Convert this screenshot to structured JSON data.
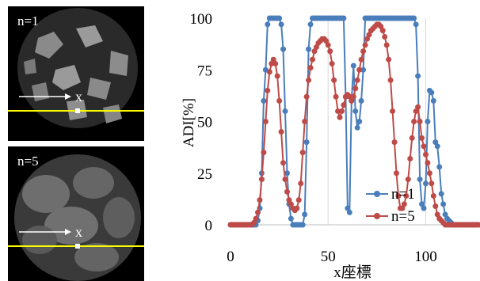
{
  "panels": {
    "top": {
      "label": "n=1",
      "x_marker": "x"
    },
    "bottom": {
      "label": "n=5",
      "x_marker": "x"
    }
  },
  "colors": {
    "n1": "#4a7ebb",
    "n5": "#be4b48",
    "line_yellow": "#ffff00",
    "grid": "#d9d9d9"
  },
  "chart_data": {
    "type": "line",
    "title": "",
    "xlabel": "x座標",
    "ylabel": "ADI[%]",
    "xlim": [
      0,
      127
    ],
    "ylim": [
      0,
      100
    ],
    "x_ticks": [
      0,
      50,
      100
    ],
    "y_ticks": [
      0,
      25,
      50,
      75,
      100
    ],
    "grid": "vertical",
    "legend": "bottom-right",
    "series": [
      {
        "name": "n=1",
        "x": [
          0,
          1,
          2,
          3,
          4,
          5,
          6,
          7,
          8,
          9,
          10,
          11,
          12,
          13,
          14,
          15,
          16,
          17,
          18,
          19,
          20,
          21,
          22,
          23,
          24,
          25,
          26,
          27,
          28,
          29,
          30,
          31,
          32,
          33,
          34,
          35,
          36,
          37,
          38,
          39,
          40,
          41,
          42,
          43,
          44,
          45,
          46,
          47,
          48,
          49,
          50,
          51,
          52,
          53,
          54,
          55,
          56,
          57,
          58,
          59,
          60,
          61,
          62,
          63,
          64,
          65,
          66,
          67,
          68,
          69,
          70,
          71,
          72,
          73,
          74,
          75,
          76,
          77,
          78,
          79,
          80,
          81,
          82,
          83,
          84,
          85,
          86,
          87,
          88,
          89,
          90,
          91,
          92,
          93,
          94,
          95,
          96,
          97,
          98,
          99,
          100,
          101,
          102,
          103,
          104,
          105,
          106,
          107,
          108,
          109,
          110,
          111,
          112,
          113,
          114,
          115,
          116,
          117,
          118,
          119,
          120,
          121,
          122,
          123,
          124,
          125,
          126,
          127
        ],
        "values": [
          0,
          0,
          0,
          0,
          0,
          0,
          0,
          0,
          0,
          0,
          0,
          0,
          0,
          0,
          2,
          8,
          25,
          60,
          75,
          97,
          100,
          100,
          100,
          100,
          100,
          100,
          97,
          85,
          55,
          25,
          10,
          3,
          0,
          0,
          0,
          0,
          0,
          0,
          5,
          40,
          85,
          97,
          100,
          100,
          100,
          100,
          100,
          100,
          100,
          100,
          100,
          100,
          100,
          100,
          100,
          100,
          100,
          100,
          100,
          62,
          8,
          6,
          60,
          77,
          55,
          47,
          50,
          60,
          75,
          100,
          100,
          100,
          100,
          100,
          100,
          100,
          100,
          100,
          100,
          100,
          100,
          100,
          100,
          100,
          100,
          100,
          100,
          100,
          100,
          100,
          100,
          100,
          100,
          100,
          100,
          97,
          72,
          22,
          10,
          8,
          20,
          50,
          65,
          64,
          60,
          40,
          38,
          28,
          15,
          10,
          5,
          3,
          2,
          1,
          0,
          0,
          0,
          0,
          0,
          0,
          0,
          0,
          0,
          0,
          0,
          0,
          0,
          0
        ]
      },
      {
        "name": "n=5",
        "x": [
          0,
          1,
          2,
          3,
          4,
          5,
          6,
          7,
          8,
          9,
          10,
          11,
          12,
          13,
          14,
          15,
          16,
          17,
          18,
          19,
          20,
          21,
          22,
          23,
          24,
          25,
          26,
          27,
          28,
          29,
          30,
          31,
          32,
          33,
          34,
          35,
          36,
          37,
          38,
          39,
          40,
          41,
          42,
          43,
          44,
          45,
          46,
          47,
          48,
          49,
          50,
          51,
          52,
          53,
          54,
          55,
          56,
          57,
          58,
          59,
          60,
          61,
          62,
          63,
          64,
          65,
          66,
          67,
          68,
          69,
          70,
          71,
          72,
          73,
          74,
          75,
          76,
          77,
          78,
          79,
          80,
          81,
          82,
          83,
          84,
          85,
          86,
          87,
          88,
          89,
          90,
          91,
          92,
          93,
          94,
          95,
          96,
          97,
          98,
          99,
          100,
          101,
          102,
          103,
          104,
          105,
          106,
          107,
          108,
          109,
          110,
          111,
          112,
          113,
          114,
          115,
          116,
          117,
          118,
          119,
          120,
          121,
          122,
          123,
          124,
          125,
          126,
          127
        ],
        "values": [
          0,
          0,
          0,
          0,
          0,
          0,
          0,
          0,
          0,
          0,
          0,
          0,
          1,
          3,
          6,
          12,
          22,
          35,
          50,
          65,
          74,
          78,
          80,
          78,
          72,
          60,
          45,
          30,
          22,
          16,
          12,
          10,
          8,
          7,
          8,
          12,
          20,
          35,
          50,
          62,
          70,
          76,
          80,
          84,
          86,
          88,
          89,
          90,
          90,
          89,
          87,
          84,
          78,
          70,
          62,
          55,
          52,
          55,
          58,
          62,
          63,
          62,
          60,
          62,
          66,
          70,
          75,
          80,
          84,
          87,
          90,
          92,
          94,
          95,
          96,
          97,
          97,
          96,
          94,
          91,
          87,
          80,
          70,
          55,
          40,
          25,
          14,
          8,
          8,
          10,
          14,
          22,
          32,
          42,
          50,
          55,
          57,
          50,
          42,
          38,
          34,
          30,
          25,
          20,
          14,
          9,
          5,
          3,
          2,
          1,
          0,
          0,
          0,
          0,
          0,
          0,
          0,
          0,
          0,
          0,
          0,
          0,
          0,
          0,
          0,
          0,
          0,
          0
        ]
      }
    ]
  }
}
